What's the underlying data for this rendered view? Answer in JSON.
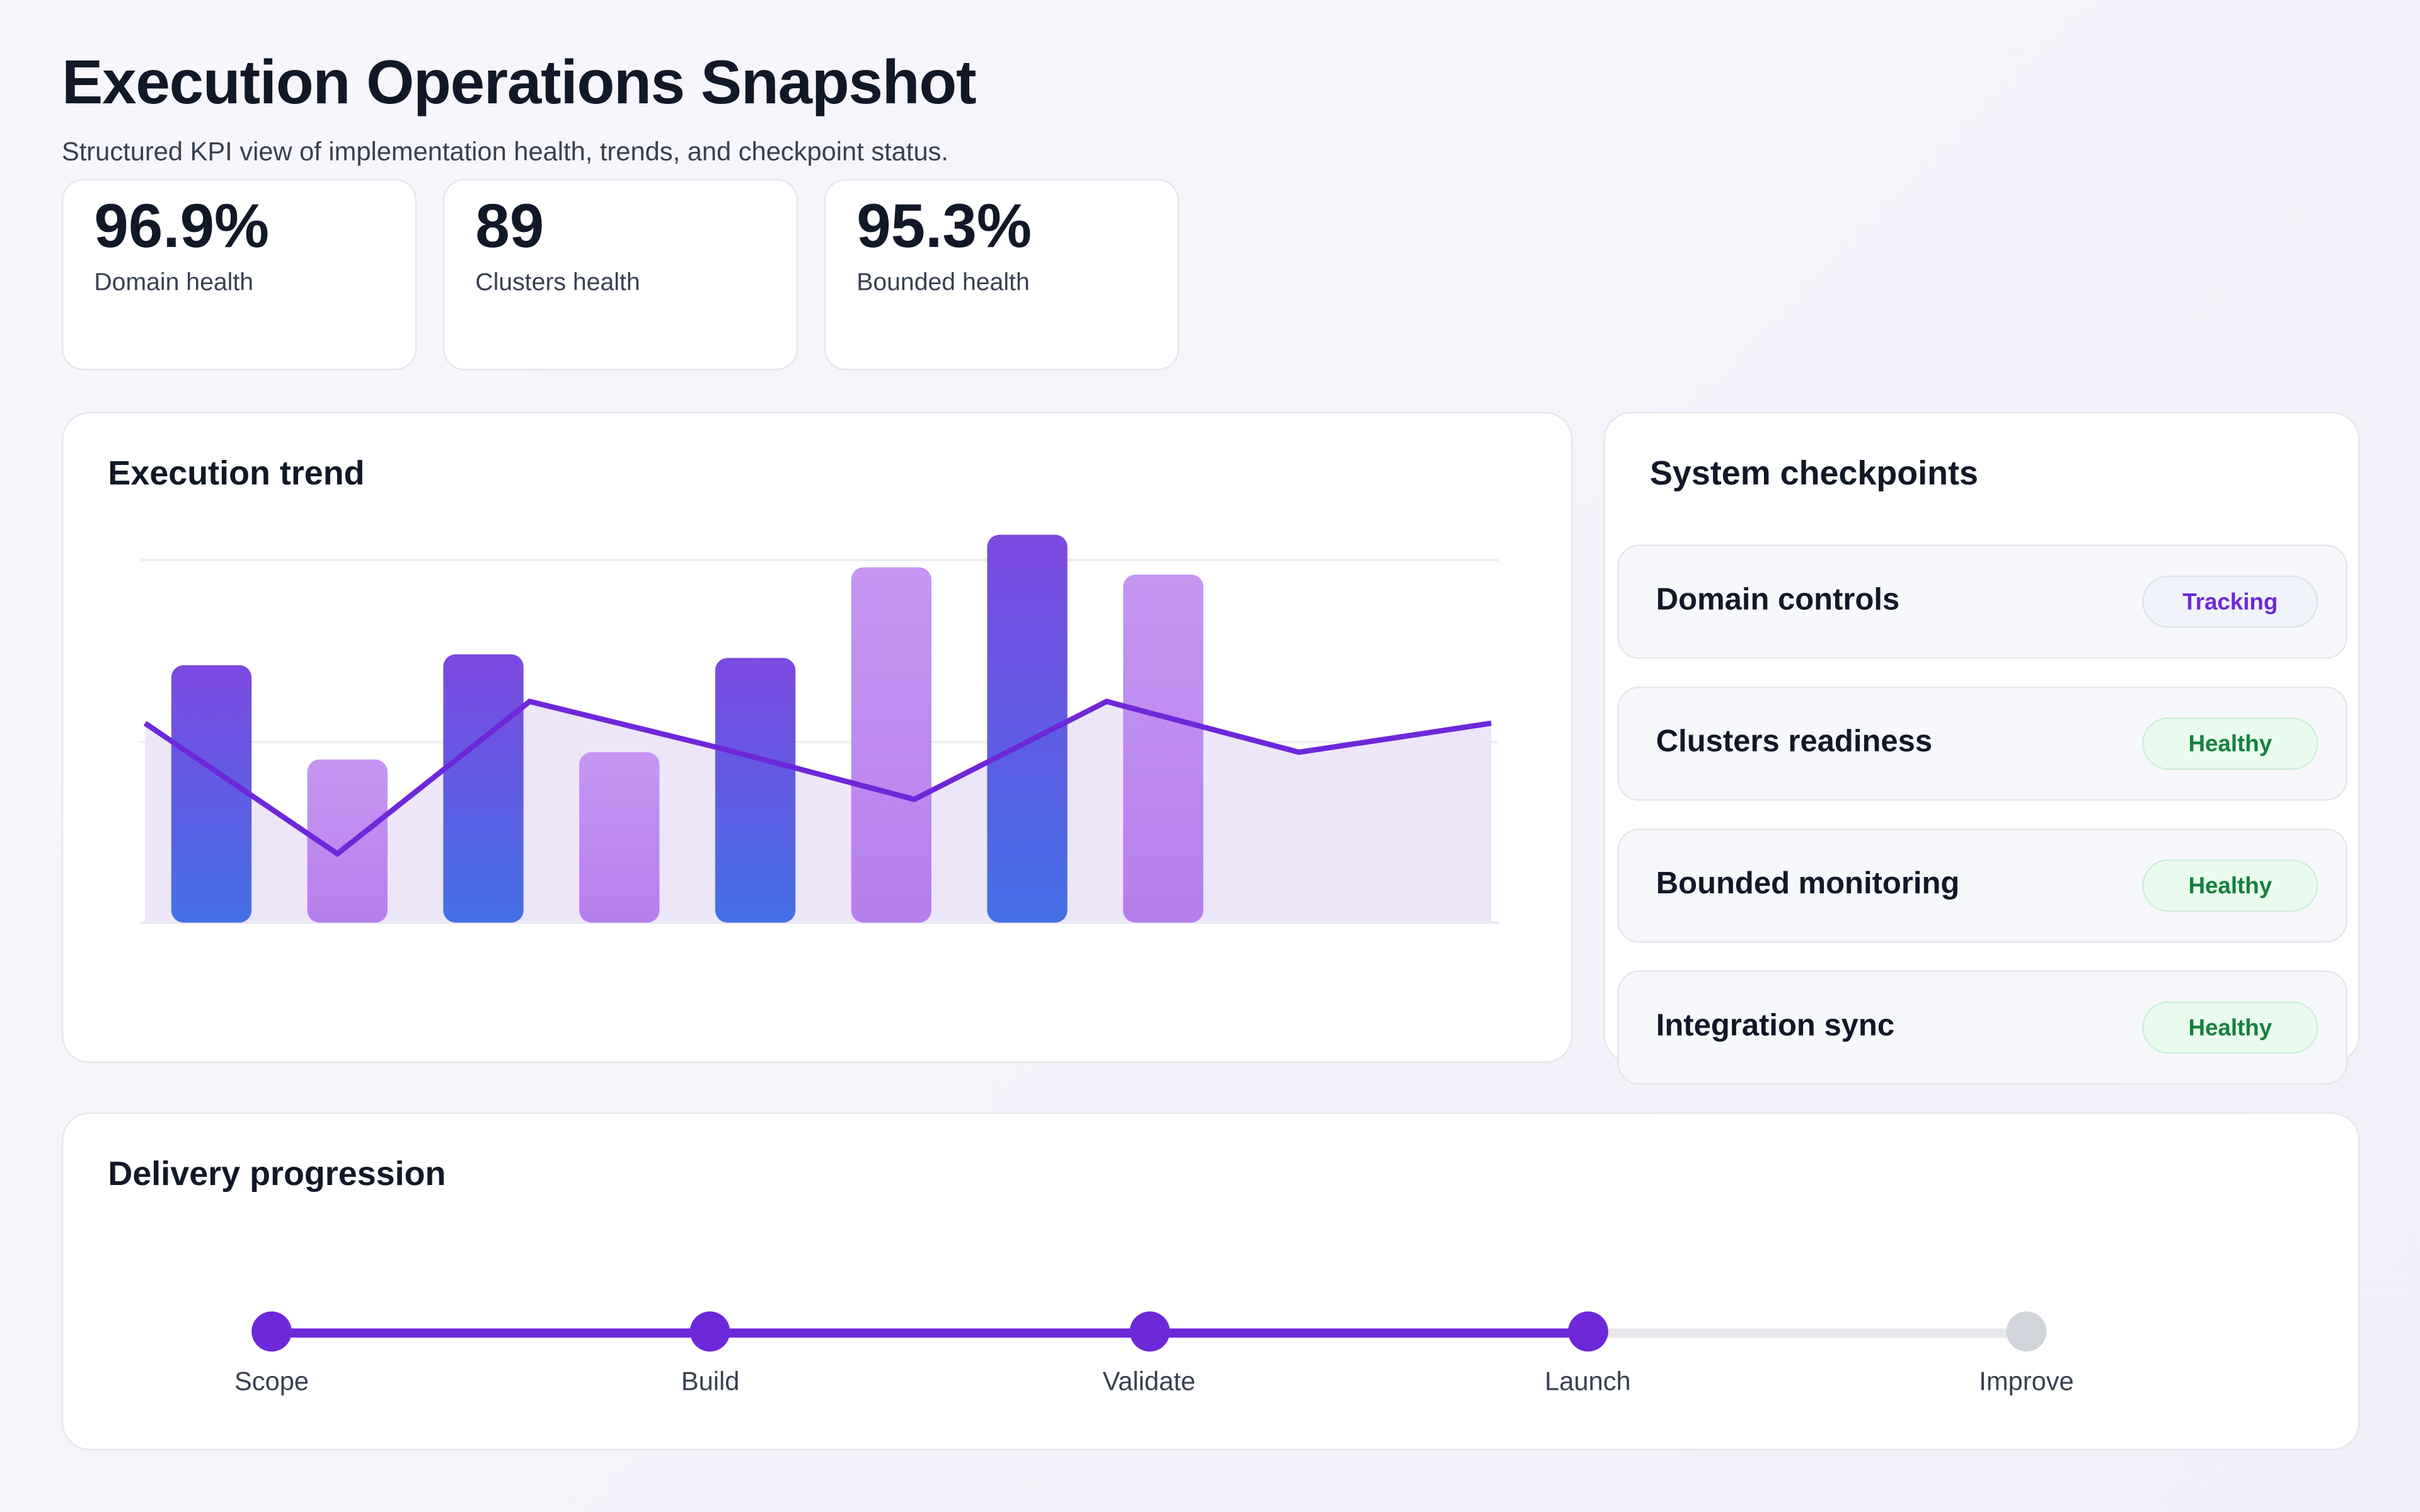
{
  "header": {
    "title": "Execution Operations Snapshot",
    "subtitle": "Structured KPI view of implementation health, trends, and checkpoint status."
  },
  "kpis": [
    {
      "value": "96.9%",
      "label": "Domain health"
    },
    {
      "value": "89",
      "label": "Clusters health"
    },
    {
      "value": "95.3%",
      "label": "Bounded health"
    }
  ],
  "trend": {
    "title": "Execution trend"
  },
  "chart_data": {
    "type": "bar",
    "title": "Execution trend",
    "grid": true,
    "bars": {
      "values": [
        71,
        45,
        74,
        47,
        73,
        98,
        107,
        96
      ],
      "colors": [
        "#4f6ae6",
        "#b985f0",
        "#4f6ae6",
        "#b985f0",
        "#4f6ae6",
        "#b985f0",
        "#4f6ae6",
        "#b985f0"
      ]
    },
    "line": {
      "values": [
        55,
        19,
        61,
        48,
        34,
        61,
        47,
        55
      ],
      "color": "#6d28d9"
    },
    "ylim": [
      0,
      110
    ]
  },
  "checkpoints": {
    "title": "System checkpoints",
    "items": [
      {
        "name": "Domain controls",
        "status": "Tracking",
        "kind": "tracking"
      },
      {
        "name": "Clusters readiness",
        "status": "Healthy",
        "kind": "healthy"
      },
      {
        "name": "Bounded monitoring",
        "status": "Healthy",
        "kind": "healthy"
      },
      {
        "name": "Integration sync",
        "status": "Healthy",
        "kind": "healthy"
      }
    ]
  },
  "progression": {
    "title": "Delivery progression",
    "progress_completed_steps": 4,
    "steps": [
      {
        "label": "Scope",
        "done": true
      },
      {
        "label": "Build",
        "done": true
      },
      {
        "label": "Validate",
        "done": true
      },
      {
        "label": "Launch",
        "done": true
      },
      {
        "label": "Improve",
        "done": false
      }
    ],
    "colors": {
      "done": "#6d28d9",
      "pending": "#d1d5db"
    }
  }
}
